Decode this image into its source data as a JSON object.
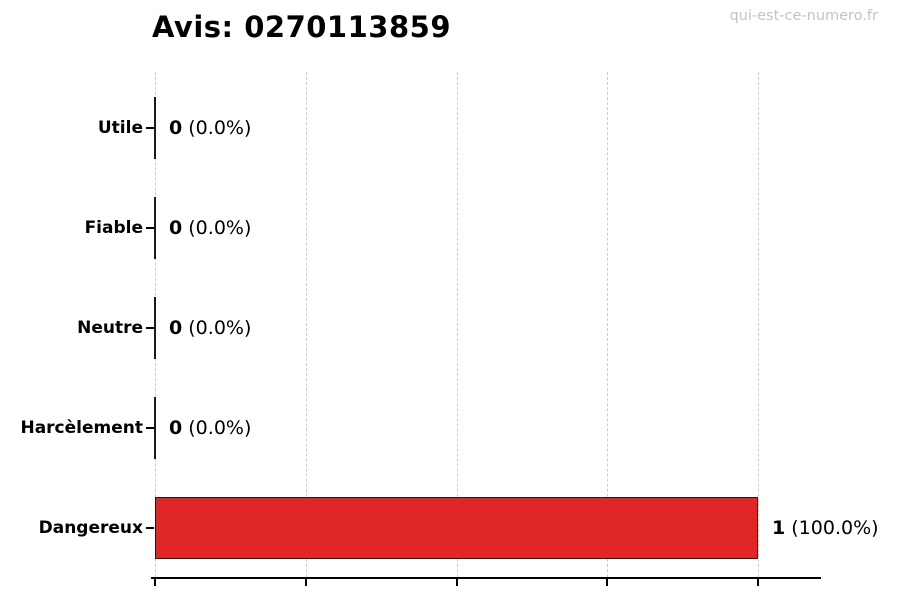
{
  "header": {
    "watermark": "qui-est-ce-numero.fr"
  },
  "chart_data": {
    "type": "bar",
    "orientation": "horizontal",
    "title": "Avis: 0270113859",
    "categories": [
      "Utile",
      "Fiable",
      "Neutre",
      "Harcèlement",
      "Dangereux"
    ],
    "values": [
      0,
      0,
      0,
      0,
      1
    ],
    "value_labels": [
      {
        "count": "0",
        "pct": "(0.0%)"
      },
      {
        "count": "0",
        "pct": "(0.0%)"
      },
      {
        "count": "0",
        "pct": "(0.0%)"
      },
      {
        "count": "0",
        "pct": "(0.0%)"
      },
      {
        "count": "1",
        "pct": "(100.0%)"
      }
    ],
    "xlabel": "",
    "ylabel": "",
    "xlim": [
      0,
      1.1
    ],
    "xticks": [
      0,
      0.25,
      0.5,
      0.75,
      1.0
    ],
    "x_tick_labels": [
      "",
      "",
      "",
      "",
      ""
    ],
    "grid": true,
    "legend": false,
    "colors": {
      "bar_fill": "#e02626",
      "bar_edge": "#1a1a1a",
      "grid": "#cccccc",
      "text": "#000000",
      "watermark": "#c4c4c4"
    }
  }
}
